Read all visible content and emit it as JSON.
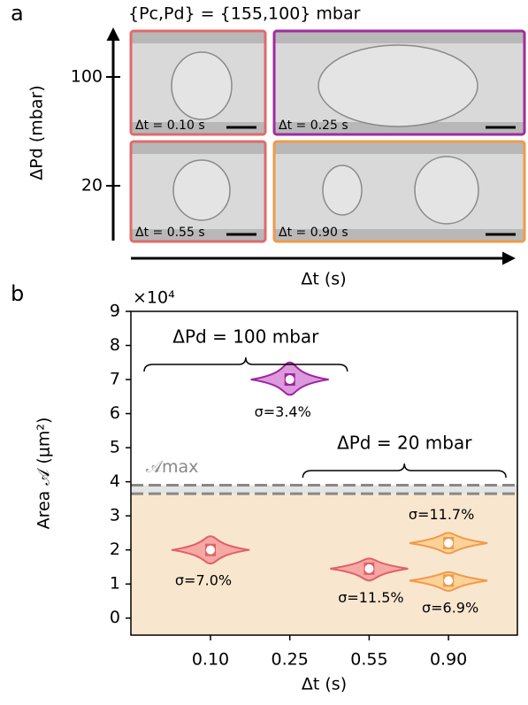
{
  "panel_a": {
    "label": "a",
    "title": "{Pc,Pd} = {155,100} mbar",
    "y_label": "ΔPd (mbar)",
    "y_ticks": [
      "100",
      "20"
    ],
    "x_label": "Δt (s)",
    "images": [
      {
        "time_label": "Δt = 0.10 s",
        "color": "#e06a6a"
      },
      {
        "time_label": "Δt = 0.25 s",
        "color": "#a02aa0"
      },
      {
        "time_label": "Δt = 0.55 s",
        "color": "#e06a6a"
      },
      {
        "time_label": "Δt = 0.90 s",
        "color": "#f09a48"
      }
    ]
  },
  "chart_data": {
    "type": "violin",
    "panel_label": "b",
    "y_label": "Area 𝒜 (μm²)",
    "y_multiplier": "×10⁴",
    "x_label": "Δt (s)",
    "categories": [
      "0.10",
      "0.25",
      "0.55",
      "0.90"
    ],
    "ylim": [
      -0.5,
      9
    ],
    "yticks": [
      0,
      1,
      2,
      3,
      4,
      5,
      6,
      7,
      8,
      9
    ],
    "amax_label": "𝒜max",
    "amax_band": [
      3.65,
      3.9
    ],
    "feasible_color": "#f9e6cf",
    "violins": [
      {
        "x": "0.10",
        "median": 2.0,
        "min": 1.6,
        "max": 2.4,
        "label": "σ=7.0%",
        "color": "#e0606a",
        "fill": "#f6a8a2"
      },
      {
        "x": "0.25",
        "median": 7.0,
        "min": 6.55,
        "max": 7.5,
        "label": "σ=3.4%",
        "color": "#a020a0",
        "fill": "#dc9adc"
      },
      {
        "x": "0.55",
        "median": 1.45,
        "min": 1.1,
        "max": 1.75,
        "label": "σ=11.5%",
        "color": "#e0606a",
        "fill": "#f6a8a2"
      },
      {
        "x": "0.90",
        "median": 2.2,
        "min": 1.9,
        "max": 2.5,
        "label": "σ=11.7%",
        "color": "#f09a48",
        "fill": "#fcd298"
      },
      {
        "x": "0.90",
        "median": 1.1,
        "min": 0.8,
        "max": 1.35,
        "label": "σ=6.9%",
        "color": "#f09a48",
        "fill": "#fcd298"
      }
    ],
    "annotations": [
      {
        "text": "ΔPd = 100 mbar",
        "from": "0.10",
        "to": "0.25"
      },
      {
        "text": "ΔPd = 20 mbar",
        "from": "0.55",
        "to": "0.90"
      }
    ]
  }
}
